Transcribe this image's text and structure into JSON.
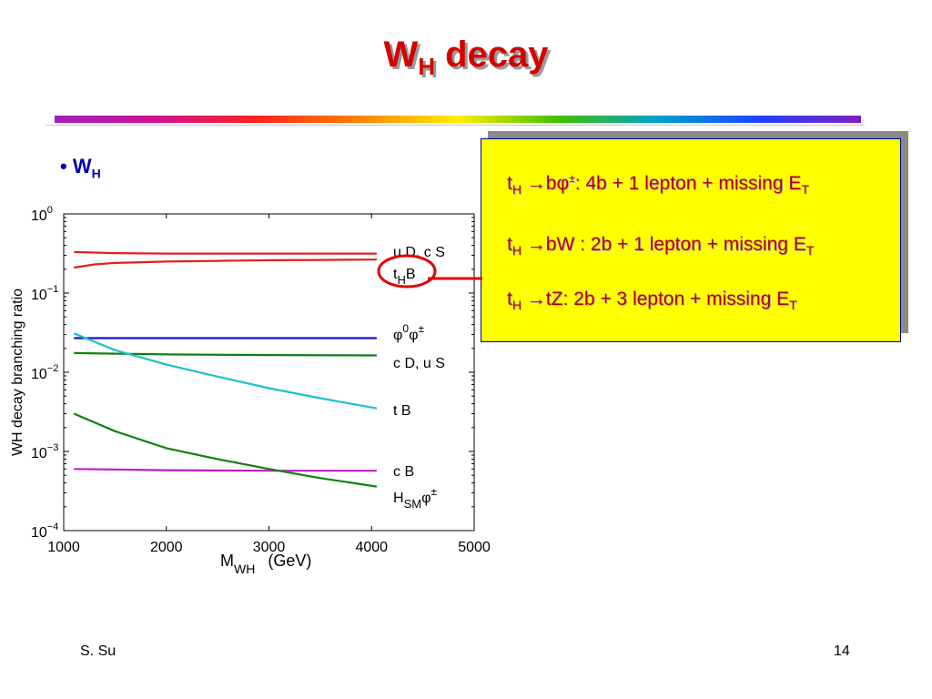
{
  "slide": {
    "title_main": "W",
    "title_sub": "H",
    "title_rest": " decay",
    "bullet_main": "W",
    "bullet_sub": "H",
    "footer_left": "S. Su",
    "footer_right": "14"
  },
  "box": {
    "lines": [
      {
        "t": "t",
        "sub": "H",
        "rest": " →bφ",
        "sup": "±",
        "rest2": ": 4b + 1 lepton + missing E",
        "sub2": "T"
      },
      {
        "t": "t",
        "sub": "H",
        "rest": " →bW : 2b + 1 lepton + missing E",
        "sup": "",
        "rest2": "",
        "sub2": "T"
      },
      {
        "t": "t",
        "sub": "H",
        "rest": " →tZ: 2b + 3 lepton + missing E",
        "sup": "",
        "rest2": "",
        "sub2": "T"
      }
    ]
  },
  "colors": {
    "title": "#d40000",
    "box_bg": "#ffff00",
    "box_text": "#b00000",
    "circle": "#e00000"
  },
  "chart_data": {
    "type": "line",
    "ylabel": "WH decay branching ratio",
    "xlabel_main": "M",
    "xlabel_sub": "WH",
    "xlabel_unit": "(GeV)",
    "xlim": [
      1000,
      5000
    ],
    "ylim_log10": [
      -4,
      0
    ],
    "yscale": "log",
    "x_ticks": [
      1000,
      2000,
      3000,
      4000,
      5000
    ],
    "y_ticks": [
      {
        "base": "10",
        "exp": "0"
      },
      {
        "base": "10",
        "exp": "−1"
      },
      {
        "base": "10",
        "exp": "−2"
      },
      {
        "base": "10",
        "exp": "−3"
      },
      {
        "base": "10",
        "exp": "−4"
      }
    ],
    "series": [
      {
        "name": "u D, c S",
        "color": "#e02020",
        "x": [
          1100,
          1500,
          2000,
          2500,
          3000,
          3500,
          4050
        ],
        "y": [
          0.33,
          0.32,
          0.315,
          0.315,
          0.315,
          0.315,
          0.315
        ]
      },
      {
        "name": "t_H B",
        "color": "#e02020",
        "x": [
          1100,
          1300,
          1500,
          2000,
          2500,
          3000,
          3500,
          4050
        ],
        "y": [
          0.21,
          0.23,
          0.24,
          0.25,
          0.255,
          0.26,
          0.262,
          0.265
        ]
      },
      {
        "name": "φ0φ±",
        "color": "#1010d0",
        "x": [
          1100,
          2000,
          3000,
          4050
        ],
        "y": [
          0.027,
          0.027,
          0.027,
          0.027
        ]
      },
      {
        "name": "c D, u S",
        "color": "#108010",
        "x": [
          1100,
          2000,
          3000,
          4050
        ],
        "y": [
          0.0175,
          0.0168,
          0.0165,
          0.0163
        ]
      },
      {
        "name": "t B",
        "color": "#20c0c8",
        "x": [
          1100,
          1500,
          2000,
          2500,
          3000,
          3500,
          4050
        ],
        "y": [
          0.031,
          0.019,
          0.0125,
          0.0088,
          0.0063,
          0.0047,
          0.0035
        ]
      },
      {
        "name": "c B",
        "color": "#c020c0",
        "x": [
          1100,
          2000,
          3000,
          4050
        ],
        "y": [
          0.0006,
          0.00058,
          0.00057,
          0.00057
        ]
      },
      {
        "name": "H_SM φ±",
        "color": "#108010",
        "x": [
          1100,
          1500,
          2000,
          2500,
          3000,
          3500,
          4050
        ],
        "y": [
          0.003,
          0.0018,
          0.0011,
          0.0008,
          0.0006,
          0.00046,
          0.00036
        ]
      }
    ],
    "annotations": [
      {
        "text": "u D, c S",
        "sub": "",
        "sup": "",
        "y": 0.33
      },
      {
        "text": "t",
        "sub": "H",
        "rest": "B",
        "y": 0.17
      },
      {
        "text": "φ",
        "sup": "0",
        "rest": "φ",
        "sup2": "±",
        "y": 0.026
      },
      {
        "text": "c D,  u S",
        "y": 0.0125
      },
      {
        "text": "t B",
        "y": 0.0035
      },
      {
        "text": "c B",
        "y": 0.0006
      },
      {
        "text": "H",
        "sub": "SM",
        "rest": "φ",
        "sup2": "±",
        "y": 0.00036
      }
    ]
  }
}
